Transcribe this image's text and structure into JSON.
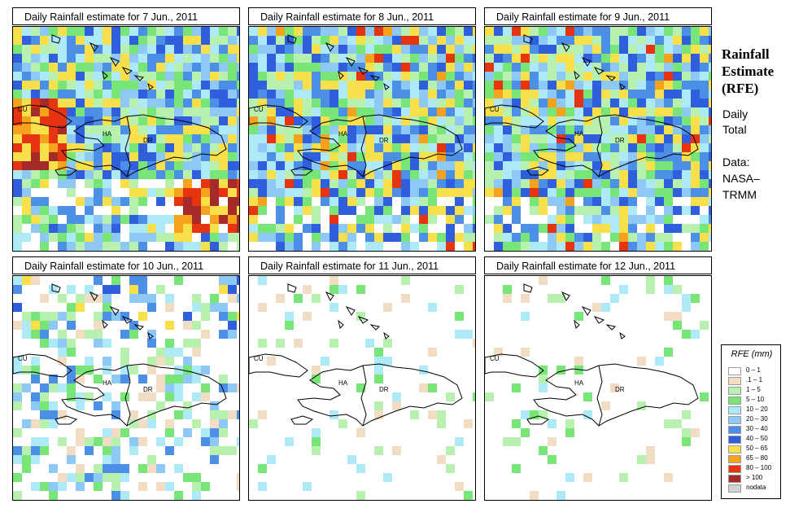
{
  "panels": [
    {
      "title": "Daily Rainfall estimate for  7 Jun., 2011",
      "id": "p1",
      "col": 0,
      "row": 0,
      "intensity": 3
    },
    {
      "title": "Daily Rainfall estimate for  8 Jun., 2011",
      "id": "p2",
      "col": 1,
      "row": 0,
      "intensity": 2
    },
    {
      "title": "Daily Rainfall estimate for  9 Jun., 2011",
      "id": "p3",
      "col": 2,
      "row": 0,
      "intensity": 2
    },
    {
      "title": "Daily Rainfall estimate for  10 Jun., 2011",
      "id": "p4",
      "col": 0,
      "row": 1,
      "intensity": 1
    },
    {
      "title": "Daily Rainfall estimate for  11 Jun., 2011",
      "id": "p5",
      "col": 1,
      "row": 1,
      "intensity": 0
    },
    {
      "title": "Daily Rainfall estimate for  12 Jun., 2011",
      "id": "p6",
      "col": 2,
      "row": 1,
      "intensity": 0
    }
  ],
  "country_labels": {
    "cu": "CU",
    "ha": "HA",
    "dr": "DR"
  },
  "side": {
    "title_line1": "Rainfall",
    "title_line2": "Estimate",
    "title_line3": "(RFE)",
    "daily": "Daily",
    "total": "Total",
    "data_label": "Data:",
    "source1": "NASA–",
    "source2": "TRMM"
  },
  "legend": {
    "title": "RFE (mm)",
    "items": [
      {
        "label": "0 – 1",
        "color": "#ffffff"
      },
      {
        "label": ".1 – 1",
        "color": "#f1dcc4"
      },
      {
        "label": "1 – 5",
        "color": "#b8f0b0"
      },
      {
        "label": "5 – 10",
        "color": "#77e577"
      },
      {
        "label": "10 – 20",
        "color": "#aee9f7"
      },
      {
        "label": "20 – 30",
        "color": "#8ec8f5"
      },
      {
        "label": "30 – 40",
        "color": "#4b8fe7"
      },
      {
        "label": "40 – 50",
        "color": "#2f5fdc"
      },
      {
        "label": "50 – 65",
        "color": "#f7e04a"
      },
      {
        "label": "65 – 80",
        "color": "#f7a21c"
      },
      {
        "label": "80 – 100",
        "color": "#e63410"
      },
      {
        "label": "> 100",
        "color": "#a52a2a"
      },
      {
        "label": "nodata",
        "color": "#d3d3d3"
      }
    ]
  }
}
